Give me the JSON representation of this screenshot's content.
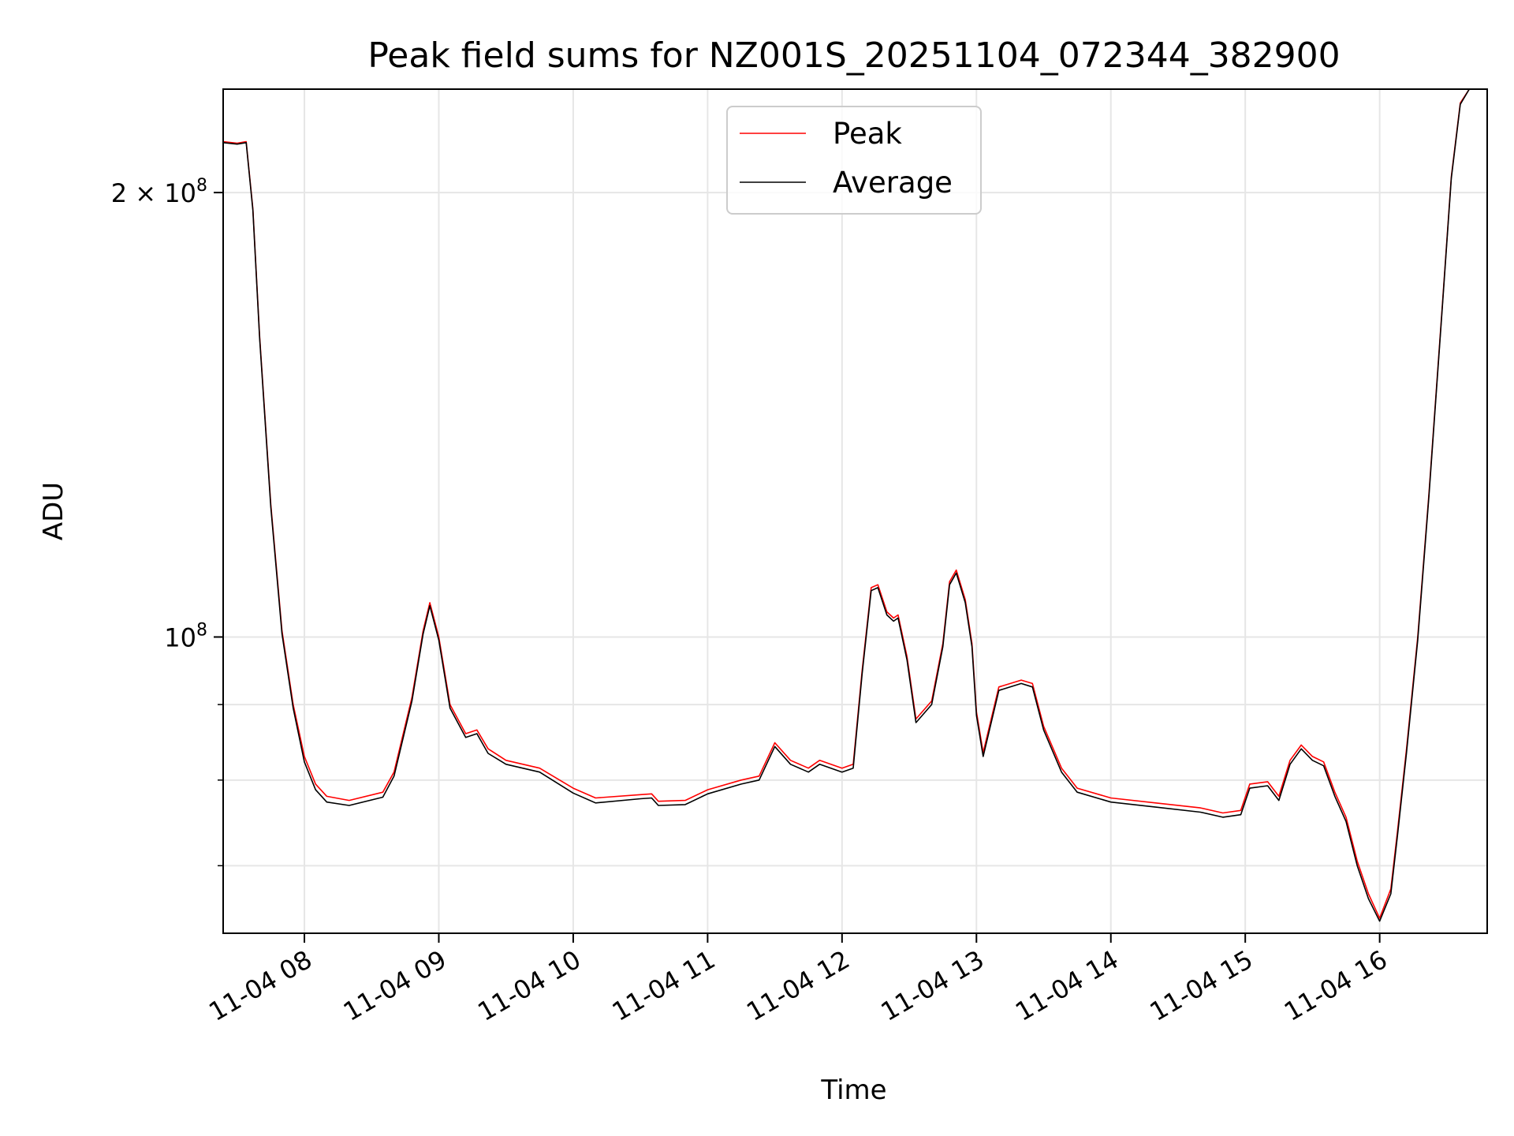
{
  "chart_data": {
    "type": "line",
    "title": "Peak field sums for NZ001S_20251104_072344_382900",
    "xlabel": "Time",
    "ylabel": "ADU",
    "x_range": [
      "2025-11-04 07:23:44",
      "2025-11-04 16:48:00"
    ],
    "xticks": [
      {
        "t": "2025-11-04 08:00",
        "label": "11-04 08"
      },
      {
        "t": "2025-11-04 09:00",
        "label": "11-04 09"
      },
      {
        "t": "2025-11-04 10:00",
        "label": "11-04 10"
      },
      {
        "t": "2025-11-04 11:00",
        "label": "11-04 11"
      },
      {
        "t": "2025-11-04 12:00",
        "label": "11-04 12"
      },
      {
        "t": "2025-11-04 13:00",
        "label": "11-04 13"
      },
      {
        "t": "2025-11-04 14:00",
        "label": "11-04 14"
      },
      {
        "t": "2025-11-04 15:00",
        "label": "11-04 15"
      },
      {
        "t": "2025-11-04 16:00",
        "label": "11-04 16"
      }
    ],
    "yscale": "log",
    "ylim": [
      63000000,
      235000000
    ],
    "yticks_major": [
      {
        "v": 100000000,
        "base": "10",
        "exp": "8",
        "prefix": ""
      },
      {
        "v": 200000000,
        "base": "10",
        "exp": "8",
        "prefix": "2 × "
      }
    ],
    "yticks_minor": [
      70000000,
      80000000,
      90000000
    ],
    "grid": true,
    "legend_position": "top-center",
    "series": [
      {
        "name": "Peak",
        "color": "#ff0000",
        "points": [
          [
            "2025-11-04 07:23:44",
            216500000
          ],
          [
            "2025-11-04 07:30",
            216000000
          ],
          [
            "2025-11-04 07:34",
            216500000
          ],
          [
            "2025-11-04 07:37",
            195000000
          ],
          [
            "2025-11-04 07:40",
            160000000
          ],
          [
            "2025-11-04 07:45",
            123000000
          ],
          [
            "2025-11-04 07:50",
            101000000
          ],
          [
            "2025-11-04 07:55",
            90000000
          ],
          [
            "2025-11-04 08:00",
            83000000
          ],
          [
            "2025-11-04 08:05",
            79500000
          ],
          [
            "2025-11-04 08:10",
            78000000
          ],
          [
            "2025-11-04 08:20",
            77500000
          ],
          [
            "2025-11-04 08:35",
            78500000
          ],
          [
            "2025-11-04 08:40",
            81000000
          ],
          [
            "2025-11-04 08:48",
            91000000
          ],
          [
            "2025-11-04 08:53",
            101000000
          ],
          [
            "2025-11-04 08:56",
            105500000
          ],
          [
            "2025-11-04 09:00",
            100000000
          ],
          [
            "2025-11-04 09:05",
            90000000
          ],
          [
            "2025-11-04 09:12",
            86000000
          ],
          [
            "2025-11-04 09:17",
            86500000
          ],
          [
            "2025-11-04 09:22",
            84000000
          ],
          [
            "2025-11-04 09:30",
            82500000
          ],
          [
            "2025-11-04 09:45",
            81500000
          ],
          [
            "2025-11-04 10:00",
            79000000
          ],
          [
            "2025-11-04 10:10",
            77800000
          ],
          [
            "2025-11-04 10:30",
            78200000
          ],
          [
            "2025-11-04 10:35",
            78300000
          ],
          [
            "2025-11-04 10:38",
            77400000
          ],
          [
            "2025-11-04 10:50",
            77500000
          ],
          [
            "2025-11-04 11:00",
            78800000
          ],
          [
            "2025-11-04 11:15",
            80000000
          ],
          [
            "2025-11-04 11:23",
            80500000
          ],
          [
            "2025-11-04 11:30",
            84800000
          ],
          [
            "2025-11-04 11:37",
            82500000
          ],
          [
            "2025-11-04 11:45",
            81500000
          ],
          [
            "2025-11-04 11:50",
            82500000
          ],
          [
            "2025-11-04 12:00",
            81500000
          ],
          [
            "2025-11-04 12:05",
            82000000
          ],
          [
            "2025-11-04 12:09",
            95000000
          ],
          [
            "2025-11-04 12:13",
            108000000
          ],
          [
            "2025-11-04 12:16",
            108500000
          ],
          [
            "2025-11-04 12:20",
            104000000
          ],
          [
            "2025-11-04 12:23",
            103000000
          ],
          [
            "2025-11-04 12:25",
            103500000
          ],
          [
            "2025-11-04 12:29",
            97000000
          ],
          [
            "2025-11-04 12:33",
            88000000
          ],
          [
            "2025-11-04 12:40",
            90500000
          ],
          [
            "2025-11-04 12:45",
            99000000
          ],
          [
            "2025-11-04 12:48",
            109000000
          ],
          [
            "2025-11-04 12:51",
            111000000
          ],
          [
            "2025-11-04 12:55",
            106000000
          ],
          [
            "2025-11-04 12:58",
            99000000
          ],
          [
            "2025-11-04 13:00",
            89000000
          ],
          [
            "2025-11-04 13:03",
            83500000
          ],
          [
            "2025-11-04 13:10",
            92500000
          ],
          [
            "2025-11-04 13:20",
            93500000
          ],
          [
            "2025-11-04 13:25",
            93000000
          ],
          [
            "2025-11-04 13:30",
            87000000
          ],
          [
            "2025-11-04 13:38",
            81500000
          ],
          [
            "2025-11-04 13:45",
            79000000
          ],
          [
            "2025-11-04 14:00",
            77800000
          ],
          [
            "2025-11-04 14:20",
            77200000
          ],
          [
            "2025-11-04 14:40",
            76600000
          ],
          [
            "2025-11-04 14:50",
            76000000
          ],
          [
            "2025-11-04 14:58",
            76300000
          ],
          [
            "2025-11-04 15:02",
            79500000
          ],
          [
            "2025-11-04 15:10",
            79800000
          ],
          [
            "2025-11-04 15:15",
            78000000
          ],
          [
            "2025-11-04 15:20",
            82500000
          ],
          [
            "2025-11-04 15:25",
            84500000
          ],
          [
            "2025-11-04 15:30",
            83000000
          ],
          [
            "2025-11-04 15:35",
            82300000
          ],
          [
            "2025-11-04 15:40",
            78500000
          ],
          [
            "2025-11-04 15:45",
            75500000
          ],
          [
            "2025-11-04 15:50",
            70500000
          ],
          [
            "2025-11-04 15:55",
            67000000
          ],
          [
            "2025-11-04 16:00",
            64500000
          ],
          [
            "2025-11-04 16:05",
            67500000
          ],
          [
            "2025-11-04 16:08",
            74000000
          ],
          [
            "2025-11-04 16:12",
            84000000
          ],
          [
            "2025-11-04 16:17",
            100000000
          ],
          [
            "2025-11-04 16:22",
            125000000
          ],
          [
            "2025-11-04 16:28",
            168000000
          ],
          [
            "2025-11-04 16:32",
            205000000
          ],
          [
            "2025-11-04 16:36",
            230000000
          ],
          [
            "2025-11-04 16:40",
            235000000
          ],
          [
            "2025-11-04 16:48",
            235000000
          ]
        ]
      },
      {
        "name": "Average",
        "color": "#000000",
        "points": [
          [
            "2025-11-04 07:23:44",
            216200000
          ],
          [
            "2025-11-04 07:30",
            215700000
          ],
          [
            "2025-11-04 07:34",
            216200000
          ],
          [
            "2025-11-04 07:37",
            194500000
          ],
          [
            "2025-11-04 07:40",
            159500000
          ],
          [
            "2025-11-04 07:45",
            122500000
          ],
          [
            "2025-11-04 07:50",
            100500000
          ],
          [
            "2025-11-04 07:55",
            89500000
          ],
          [
            "2025-11-04 08:00",
            82300000
          ],
          [
            "2025-11-04 08:05",
            78800000
          ],
          [
            "2025-11-04 08:10",
            77300000
          ],
          [
            "2025-11-04 08:20",
            76900000
          ],
          [
            "2025-11-04 08:35",
            77900000
          ],
          [
            "2025-11-04 08:40",
            80500000
          ],
          [
            "2025-11-04 08:48",
            90500000
          ],
          [
            "2025-11-04 08:53",
            100500000
          ],
          [
            "2025-11-04 08:56",
            105000000
          ],
          [
            "2025-11-04 09:00",
            99500000
          ],
          [
            "2025-11-04 09:05",
            89500000
          ],
          [
            "2025-11-04 09:12",
            85500000
          ],
          [
            "2025-11-04 09:17",
            86000000
          ],
          [
            "2025-11-04 09:22",
            83400000
          ],
          [
            "2025-11-04 09:30",
            82000000
          ],
          [
            "2025-11-04 09:45",
            81000000
          ],
          [
            "2025-11-04 10:00",
            78400000
          ],
          [
            "2025-11-04 10:10",
            77200000
          ],
          [
            "2025-11-04 10:30",
            77700000
          ],
          [
            "2025-11-04 10:35",
            77800000
          ],
          [
            "2025-11-04 10:38",
            76900000
          ],
          [
            "2025-11-04 10:50",
            77000000
          ],
          [
            "2025-11-04 11:00",
            78300000
          ],
          [
            "2025-11-04 11:15",
            79500000
          ],
          [
            "2025-11-04 11:23",
            80000000
          ],
          [
            "2025-11-04 11:30",
            84300000
          ],
          [
            "2025-11-04 11:37",
            82000000
          ],
          [
            "2025-11-04 11:45",
            81000000
          ],
          [
            "2025-11-04 11:50",
            82000000
          ],
          [
            "2025-11-04 12:00",
            81000000
          ],
          [
            "2025-11-04 12:05",
            81500000
          ],
          [
            "2025-11-04 12:09",
            94500000
          ],
          [
            "2025-11-04 12:13",
            107500000
          ],
          [
            "2025-11-04 12:16",
            108000000
          ],
          [
            "2025-11-04 12:20",
            103500000
          ],
          [
            "2025-11-04 12:23",
            102500000
          ],
          [
            "2025-11-04 12:25",
            103000000
          ],
          [
            "2025-11-04 12:29",
            96500000
          ],
          [
            "2025-11-04 12:33",
            87500000
          ],
          [
            "2025-11-04 12:40",
            90000000
          ],
          [
            "2025-11-04 12:45",
            98500000
          ],
          [
            "2025-11-04 12:48",
            108500000
          ],
          [
            "2025-11-04 12:51",
            110500000
          ],
          [
            "2025-11-04 12:55",
            105500000
          ],
          [
            "2025-11-04 12:58",
            98500000
          ],
          [
            "2025-11-04 13:00",
            88500000
          ],
          [
            "2025-11-04 13:03",
            83000000
          ],
          [
            "2025-11-04 13:10",
            92000000
          ],
          [
            "2025-11-04 13:20",
            93000000
          ],
          [
            "2025-11-04 13:25",
            92500000
          ],
          [
            "2025-11-04 13:30",
            86500000
          ],
          [
            "2025-11-04 13:38",
            81000000
          ],
          [
            "2025-11-04 13:45",
            78500000
          ],
          [
            "2025-11-04 14:00",
            77300000
          ],
          [
            "2025-11-04 14:20",
            76700000
          ],
          [
            "2025-11-04 14:40",
            76100000
          ],
          [
            "2025-11-04 14:50",
            75500000
          ],
          [
            "2025-11-04 14:58",
            75800000
          ],
          [
            "2025-11-04 15:02",
            79000000
          ],
          [
            "2025-11-04 15:10",
            79300000
          ],
          [
            "2025-11-04 15:15",
            77500000
          ],
          [
            "2025-11-04 15:20",
            82000000
          ],
          [
            "2025-11-04 15:25",
            84000000
          ],
          [
            "2025-11-04 15:30",
            82500000
          ],
          [
            "2025-11-04 15:35",
            81800000
          ],
          [
            "2025-11-04 15:40",
            78000000
          ],
          [
            "2025-11-04 15:45",
            75000000
          ],
          [
            "2025-11-04 15:50",
            70000000
          ],
          [
            "2025-11-04 15:55",
            66500000
          ],
          [
            "2025-11-04 16:00",
            64200000
          ],
          [
            "2025-11-04 16:05",
            67000000
          ],
          [
            "2025-11-04 16:08",
            73500000
          ],
          [
            "2025-11-04 16:12",
            83500000
          ],
          [
            "2025-11-04 16:17",
            99500000
          ],
          [
            "2025-11-04 16:22",
            124500000
          ],
          [
            "2025-11-04 16:28",
            167500000
          ],
          [
            "2025-11-04 16:32",
            204500000
          ],
          [
            "2025-11-04 16:36",
            229500000
          ],
          [
            "2025-11-04 16:40",
            235000000
          ],
          [
            "2025-11-04 16:48",
            235000000
          ]
        ]
      }
    ]
  }
}
